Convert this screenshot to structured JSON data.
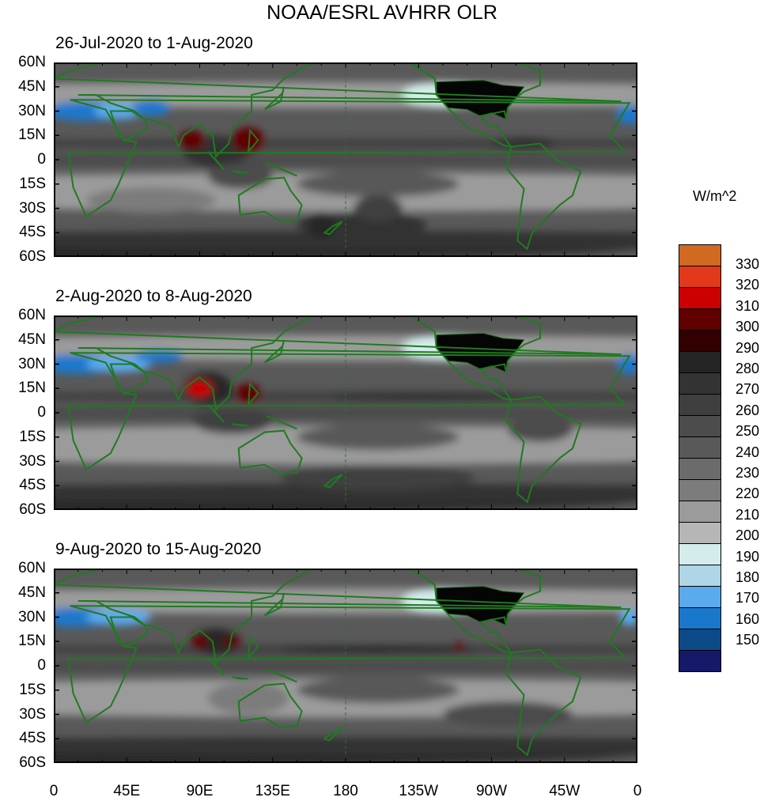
{
  "title": "NOAA/ESRL AVHRR OLR",
  "units": "W/m^2",
  "panels": [
    {
      "title": "26-Jul-2020 to 1-Aug-2020"
    },
    {
      "title": "2-Aug-2020 to 8-Aug-2020"
    },
    {
      "title": "9-Aug-2020 to 15-Aug-2020"
    }
  ],
  "lat_labels": [
    "60N",
    "45N",
    "30N",
    "15N",
    "0",
    "15S",
    "30S",
    "45S",
    "60S"
  ],
  "lon_labels": [
    "0",
    "45E",
    "90E",
    "135E",
    "180",
    "135W",
    "90W",
    "45W",
    "0"
  ],
  "colorbar": {
    "labels": [
      "330",
      "320",
      "310",
      "300",
      "290",
      "280",
      "270",
      "260",
      "250",
      "240",
      "230",
      "220",
      "210",
      "200",
      "190",
      "180",
      "170",
      "160",
      "150"
    ],
    "colors": [
      "#cf6a20",
      "#e3391a",
      "#cc0000",
      "#600000",
      "#330000",
      "#252525",
      "#333333",
      "#3f3f3f",
      "#4c4c4c",
      "#595959",
      "#6b6b6b",
      "#7c7c7c",
      "#9b9b9b",
      "#b6b6b6",
      "#d4ecec",
      "#aed6e6",
      "#5aaaee",
      "#1a78cc",
      "#0c4a8a",
      "#16186a"
    ]
  },
  "chart_data": {
    "type": "heatmap",
    "title": "NOAA/ESRL AVHRR OLR",
    "colorbar_label": "W/m^2",
    "levels": [
      150,
      160,
      170,
      180,
      190,
      200,
      210,
      220,
      230,
      240,
      250,
      260,
      270,
      280,
      290,
      300,
      310,
      320,
      330
    ],
    "xlim": [
      0,
      360
    ],
    "ylim": [
      -60,
      60
    ],
    "panels": [
      "26-Jul-2020 to 1-Aug-2020",
      "2-Aug-2020 to 8-Aug-2020",
      "9-Aug-2020 to 15-Aug-2020"
    ]
  }
}
